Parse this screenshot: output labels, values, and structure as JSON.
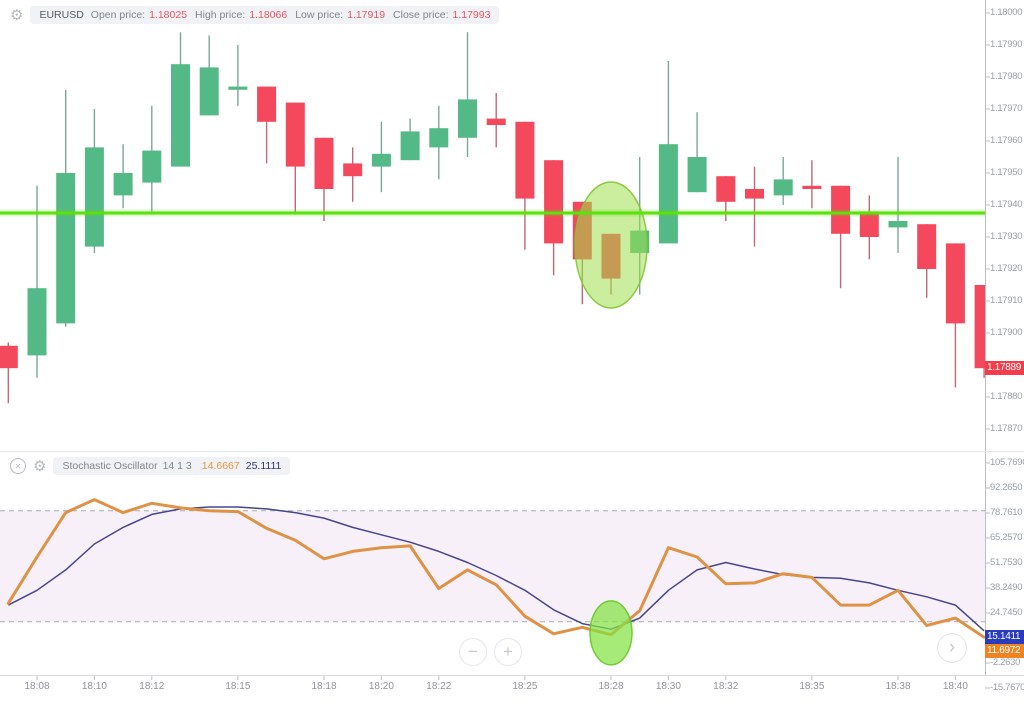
{
  "ui": {
    "price_legend": {
      "symbol": "EURUSD",
      "items": [
        {
          "label": "Open price:",
          "value": "1.18025"
        },
        {
          "label": "High price:",
          "value": "1.18066"
        },
        {
          "label": "Low price:",
          "value": "1.17919"
        },
        {
          "label": "Close price:",
          "value": "1.17993"
        }
      ]
    },
    "stoch_legend": {
      "title": "Stochastic Oscillator",
      "params": "14 1 3",
      "k_value": "14.6667",
      "d_value": "25.1111"
    },
    "price_axis": {
      "ticks": [
        "1.18000",
        "1.17990",
        "1.17980",
        "1.17970",
        "1.17960",
        "1.17950",
        "1.17940",
        "1.17930",
        "1.17920",
        "1.17910",
        "1.17900",
        "1.17880",
        "1.17870"
      ],
      "current_price": "1.17889"
    },
    "stoch_axis": {
      "ticks": [
        "105.7690",
        "92.2650",
        "78.7610",
        "65.2570",
        "51.7530",
        "38.2490",
        "24.7450",
        "-2.2630",
        "-15.7670"
      ],
      "d_label": "15.1411",
      "k_label": "11.6972"
    },
    "time_axis": {
      "ticks": [
        "18:08",
        "18:10",
        "18:12",
        "18:15",
        "18:18",
        "18:20",
        "18:22",
        "18:25",
        "18:28",
        "18:30",
        "18:32",
        "18:35",
        "18:38",
        "18:40"
      ]
    },
    "buttons": {
      "zoom_out": "−",
      "zoom_in": "+",
      "scroll_right": "›"
    },
    "icons": {
      "gear": "⚙",
      "close": "✕"
    },
    "colors": {
      "up": "#53b987",
      "down": "#f4485c",
      "price_line": "#5ce00e",
      "k_line": "#de9246",
      "d_line": "#46468f",
      "value_text": "#ef5661",
      "chip_price_bg": "#f43c4b",
      "chip_k_bg": "#ef8522",
      "chip_d_bg": "#2a3cbe"
    }
  },
  "chart_data": [
    {
      "type": "candlestick",
      "symbol": "EURUSD",
      "interval_minutes": 1,
      "ylim": [
        1.178634,
        1.180041
      ],
      "times": [
        "18:07",
        "18:08",
        "18:09",
        "18:10",
        "18:11",
        "18:12",
        "18:13",
        "18:14",
        "18:15",
        "18:16",
        "18:17",
        "18:18",
        "18:19",
        "18:20",
        "18:21",
        "18:22",
        "18:23",
        "18:24",
        "18:25",
        "18:26",
        "18:27",
        "18:28",
        "18:29",
        "18:30",
        "18:31",
        "18:32",
        "18:33",
        "18:34",
        "18:35",
        "18:36",
        "18:37",
        "18:38",
        "18:39",
        "18:40",
        "18:41"
      ],
      "open": [
        1.17896,
        1.17893,
        1.17903,
        1.17927,
        1.17943,
        1.17947,
        1.17952,
        1.17968,
        1.17976,
        1.17977,
        1.17972,
        1.17961,
        1.17953,
        1.17952,
        1.17954,
        1.17958,
        1.17961,
        1.17967,
        1.17966,
        1.17954,
        1.17941,
        1.17931,
        1.17925,
        1.17928,
        1.17944,
        1.17949,
        1.17945,
        1.17943,
        1.17946,
        1.17946,
        1.17938,
        1.17933,
        1.17934,
        1.17928,
        1.17915
      ],
      "high": [
        1.17897,
        1.17946,
        1.17976,
        1.1797,
        1.17959,
        1.17971,
        1.17994,
        1.17993,
        1.1799,
        1.17977,
        1.17972,
        1.17961,
        1.17958,
        1.17966,
        1.17967,
        1.17971,
        1.17994,
        1.17975,
        1.17966,
        1.17954,
        1.17941,
        1.17931,
        1.17955,
        1.17985,
        1.17969,
        1.17949,
        1.17952,
        1.17955,
        1.17954,
        1.17946,
        1.17943,
        1.17955,
        1.17934,
        1.17928,
        1.17915
      ],
      "low": [
        1.17878,
        1.17886,
        1.17902,
        1.17925,
        1.17939,
        1.17938,
        1.17952,
        1.17968,
        1.17971,
        1.17953,
        1.17937,
        1.17935,
        1.17941,
        1.17944,
        1.17954,
        1.17948,
        1.17955,
        1.17958,
        1.17926,
        1.17918,
        1.17909,
        1.17912,
        1.17912,
        1.17928,
        1.17944,
        1.17935,
        1.17927,
        1.1794,
        1.17939,
        1.17914,
        1.17923,
        1.17925,
        1.17911,
        1.17883,
        1.17886
      ],
      "close": [
        1.17889,
        1.17914,
        1.1795,
        1.17958,
        1.1795,
        1.17957,
        1.17984,
        1.17983,
        1.17977,
        1.17966,
        1.17952,
        1.17945,
        1.17949,
        1.17956,
        1.17963,
        1.17964,
        1.17973,
        1.17965,
        1.17942,
        1.17928,
        1.17923,
        1.17917,
        1.17932,
        1.17959,
        1.17955,
        1.17941,
        1.17942,
        1.17948,
        1.17945,
        1.17931,
        1.1793,
        1.17935,
        1.1792,
        1.17903,
        1.17889
      ],
      "horizontal_line": {
        "value": 1.179375,
        "color": "#5ce00e"
      },
      "highlight_ellipse": {
        "time": "18:28",
        "center_value": 1.179275
      },
      "colors": {
        "up": "#53b987",
        "down": "#f4485c",
        "up_wick": "#7ba79b",
        "down_wick": "#c06a77"
      }
    },
    {
      "type": "line",
      "title": "Stochastic Oscillator",
      "params": [
        14,
        1,
        3
      ],
      "ylim": [
        -15.767,
        105.769
      ],
      "x": [
        "18:07",
        "18:08",
        "18:09",
        "18:10",
        "18:11",
        "18:12",
        "18:13",
        "18:14",
        "18:15",
        "18:16",
        "18:17",
        "18:18",
        "18:19",
        "18:20",
        "18:21",
        "18:22",
        "18:23",
        "18:24",
        "18:25",
        "18:26",
        "18:27",
        "18:28",
        "18:29",
        "18:30",
        "18:31",
        "18:32",
        "18:33",
        "18:34",
        "18:35",
        "18:36",
        "18:37",
        "18:38",
        "18:39",
        "18:40",
        "18:41"
      ],
      "series": [
        {
          "name": "%K",
          "color": "#de9246",
          "values": [
            30,
            55,
            79,
            86,
            79,
            84,
            81.5,
            80,
            79.5,
            70.5,
            64,
            54,
            58,
            60,
            61,
            38,
            48,
            40,
            23,
            13.5,
            17,
            13,
            26,
            60,
            55,
            40.5,
            41,
            46,
            44,
            29,
            29,
            37,
            18,
            22,
            11.6972
          ]
        },
        {
          "name": "%D",
          "color": "#46468f",
          "values": [
            29,
            37,
            48,
            62,
            71,
            78,
            81,
            82,
            82,
            81,
            79,
            76,
            71,
            67,
            63,
            58,
            52,
            45,
            37,
            26.5,
            19,
            16,
            22,
            37,
            48,
            52,
            48.5,
            45.5,
            44,
            43.5,
            41,
            37,
            33.5,
            29,
            15.1411
          ]
        }
      ],
      "bands": {
        "upper": 80,
        "lower": 20,
        "fill": "rgba(156,39,176,0.07)",
        "line_color": "#a9aab6"
      },
      "highlight_ellipse": {
        "time": "18:28",
        "center_value": 14
      }
    }
  ]
}
